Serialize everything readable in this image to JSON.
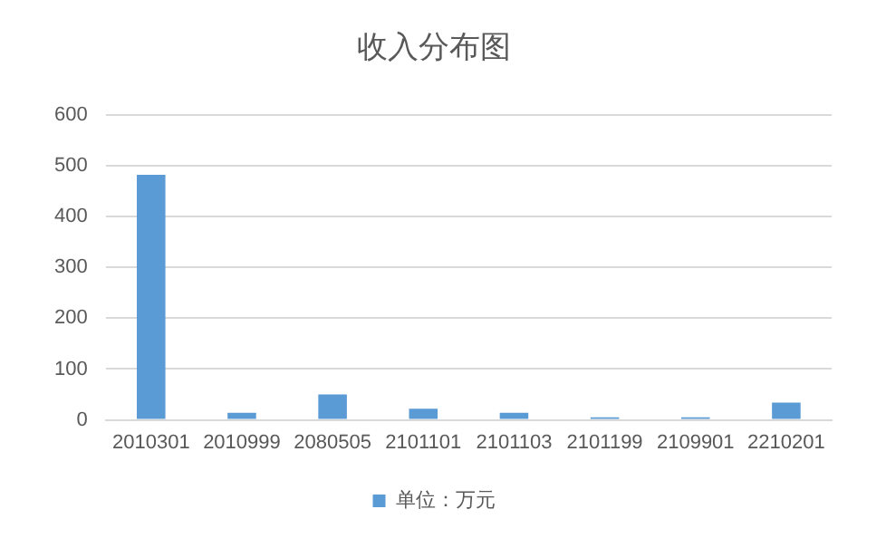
{
  "chart_data": {
    "type": "bar",
    "title": "收入分布图",
    "categories": [
      "2010301",
      "2010999",
      "2080505",
      "2101101",
      "2101103",
      "2101199",
      "2109901",
      "2210201"
    ],
    "series": [
      {
        "name": "单位：万元",
        "color": "#5b9bd5",
        "values": [
          482,
          14,
          50,
          22,
          14,
          5,
          5,
          34
        ]
      }
    ],
    "ylim": [
      0,
      600
    ],
    "yticks": [
      0,
      100,
      200,
      300,
      400,
      500,
      600
    ],
    "grid": "y",
    "legend": "bottom"
  }
}
